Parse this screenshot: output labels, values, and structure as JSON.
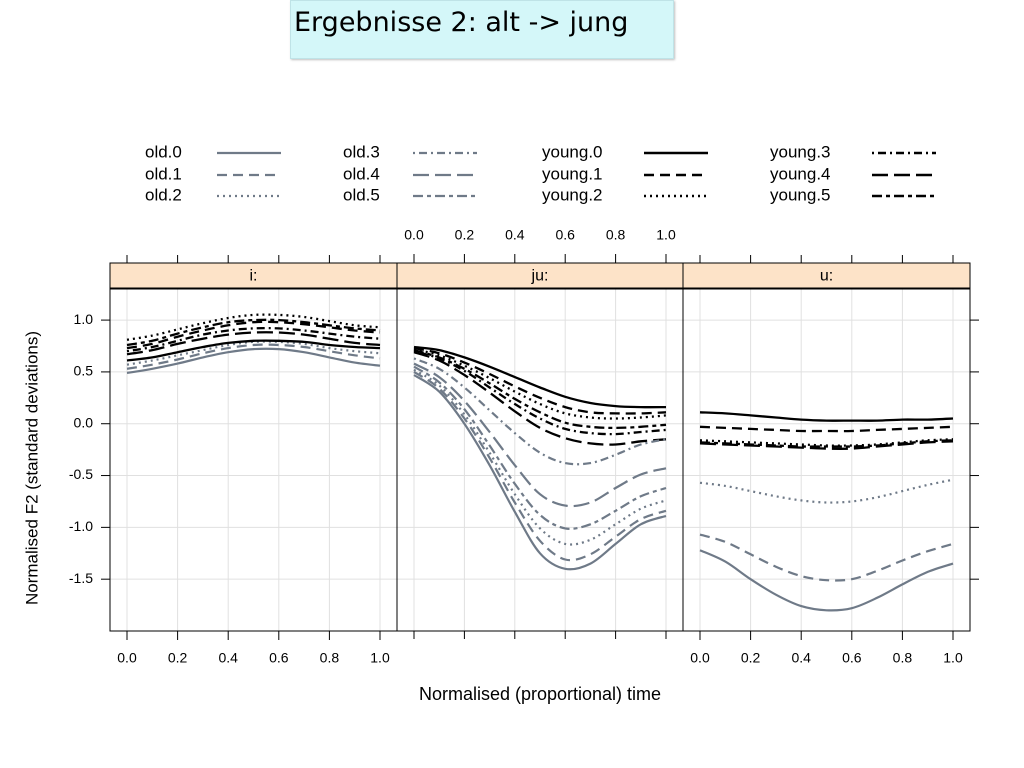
{
  "slide": {
    "title": "Ergebnisse 2: alt -> jung"
  },
  "chart_data": {
    "type": "line",
    "xlabel": "Normalised (proportional) time",
    "ylabel": "Normalised F2 (standard deviations)",
    "xlim": [
      0.0,
      1.0
    ],
    "ylim": [
      -2.0,
      1.3
    ],
    "x_ticks": [
      "0.0",
      "0.2",
      "0.4",
      "0.6",
      "0.8",
      "1.0"
    ],
    "y_ticks": [
      "1.0",
      "0.5",
      "0.0",
      "-0.5",
      "-1.0",
      "-1.5"
    ],
    "grid": true,
    "legend_position": "top",
    "colors": {
      "old": "#6f7a88",
      "young": "#000000",
      "strip": "#fde3c8",
      "panel_border": "#000000",
      "grid": "#e0e0e0"
    },
    "legend": [
      {
        "name": "old.0",
        "group": "old",
        "dash": "solid"
      },
      {
        "name": "old.1",
        "group": "old",
        "dash": "dashed"
      },
      {
        "name": "old.2",
        "group": "old",
        "dash": "dotted"
      },
      {
        "name": "old.3",
        "group": "old",
        "dash": "dotdash"
      },
      {
        "name": "old.4",
        "group": "old",
        "dash": "longdash"
      },
      {
        "name": "old.5",
        "group": "old",
        "dash": "twodash"
      },
      {
        "name": "young.0",
        "group": "young",
        "dash": "solid"
      },
      {
        "name": "young.1",
        "group": "young",
        "dash": "dashed"
      },
      {
        "name": "young.2",
        "group": "young",
        "dash": "dotted"
      },
      {
        "name": "young.3",
        "group": "young",
        "dash": "dotdash"
      },
      {
        "name": "young.4",
        "group": "young",
        "dash": "longdash"
      },
      {
        "name": "young.5",
        "group": "young",
        "dash": "twodash"
      }
    ],
    "x": [
      0.0,
      0.1,
      0.2,
      0.3,
      0.4,
      0.5,
      0.6,
      0.7,
      0.8,
      0.9,
      1.0
    ],
    "panels": [
      {
        "label": "i:",
        "series": [
          {
            "name": "old.0",
            "values": [
              0.49,
              0.53,
              0.58,
              0.64,
              0.69,
              0.72,
              0.72,
              0.69,
              0.64,
              0.59,
              0.56
            ]
          },
          {
            "name": "old.1",
            "values": [
              0.53,
              0.57,
              0.62,
              0.68,
              0.73,
              0.76,
              0.76,
              0.74,
              0.7,
              0.66,
              0.63
            ]
          },
          {
            "name": "old.2",
            "values": [
              0.57,
              0.61,
              0.66,
              0.71,
              0.76,
              0.79,
              0.79,
              0.77,
              0.73,
              0.7,
              0.68
            ]
          },
          {
            "name": "young.0",
            "values": [
              0.61,
              0.64,
              0.69,
              0.74,
              0.78,
              0.8,
              0.8,
              0.79,
              0.76,
              0.74,
              0.73
            ]
          },
          {
            "name": "young.4",
            "values": [
              0.67,
              0.71,
              0.77,
              0.82,
              0.86,
              0.88,
              0.88,
              0.86,
              0.82,
              0.78,
              0.76
            ]
          },
          {
            "name": "young.3",
            "values": [
              0.7,
              0.74,
              0.8,
              0.86,
              0.9,
              0.92,
              0.92,
              0.9,
              0.87,
              0.84,
              0.82
            ]
          },
          {
            "name": "young.1",
            "values": [
              0.73,
              0.77,
              0.84,
              0.9,
              0.95,
              0.98,
              0.98,
              0.96,
              0.93,
              0.9,
              0.88
            ]
          },
          {
            "name": "young.5",
            "values": [
              0.76,
              0.8,
              0.87,
              0.93,
              0.98,
              1.0,
              1.0,
              0.98,
              0.95,
              0.92,
              0.9
            ]
          },
          {
            "name": "young.2",
            "values": [
              0.81,
              0.85,
              0.91,
              0.97,
              1.02,
              1.05,
              1.05,
              1.03,
              0.99,
              0.95,
              0.93
            ]
          }
        ]
      },
      {
        "label": "ju:",
        "series": [
          {
            "name": "young.0",
            "values": [
              0.74,
              0.71,
              0.64,
              0.55,
              0.45,
              0.35,
              0.26,
              0.2,
              0.17,
              0.16,
              0.16
            ]
          },
          {
            "name": "young.1",
            "values": [
              0.73,
              0.68,
              0.59,
              0.48,
              0.36,
              0.25,
              0.16,
              0.11,
              0.1,
              0.1,
              0.11
            ]
          },
          {
            "name": "young.2",
            "values": [
              0.72,
              0.66,
              0.56,
              0.44,
              0.31,
              0.19,
              0.1,
              0.06,
              0.05,
              0.06,
              0.08
            ]
          },
          {
            "name": "young.5",
            "values": [
              0.71,
              0.64,
              0.53,
              0.39,
              0.24,
              0.11,
              0.01,
              -0.03,
              -0.04,
              -0.03,
              -0.01
            ]
          },
          {
            "name": "young.3",
            "values": [
              0.7,
              0.63,
              0.51,
              0.35,
              0.19,
              0.05,
              -0.05,
              -0.09,
              -0.1,
              -0.08,
              -0.06
            ]
          },
          {
            "name": "young.4",
            "values": [
              0.69,
              0.61,
              0.47,
              0.3,
              0.12,
              -0.04,
              -0.14,
              -0.19,
              -0.2,
              -0.17,
              -0.15
            ]
          },
          {
            "name": "old.3",
            "values": [
              0.63,
              0.53,
              0.35,
              0.13,
              -0.09,
              -0.28,
              -0.38,
              -0.38,
              -0.3,
              -0.2,
              -0.15
            ]
          },
          {
            "name": "old.4",
            "values": [
              0.58,
              0.45,
              0.22,
              -0.08,
              -0.4,
              -0.68,
              -0.79,
              -0.76,
              -0.62,
              -0.49,
              -0.43
            ]
          },
          {
            "name": "old.5",
            "values": [
              0.55,
              0.4,
              0.14,
              -0.21,
              -0.58,
              -0.88,
              -1.01,
              -0.97,
              -0.84,
              -0.7,
              -0.62
            ]
          },
          {
            "name": "old.2",
            "values": [
              0.52,
              0.37,
              0.09,
              -0.28,
              -0.68,
              -1.01,
              -1.16,
              -1.12,
              -0.97,
              -0.82,
              -0.74
            ]
          },
          {
            "name": "old.1",
            "values": [
              0.5,
              0.34,
              0.05,
              -0.33,
              -0.76,
              -1.13,
              -1.31,
              -1.26,
              -1.09,
              -0.92,
              -0.84
            ]
          },
          {
            "name": "old.0",
            "values": [
              0.47,
              0.31,
              0.0,
              -0.4,
              -0.85,
              -1.25,
              -1.4,
              -1.35,
              -1.16,
              -0.97,
              -0.89
            ]
          }
        ]
      },
      {
        "label": "u:",
        "series": [
          {
            "name": "young.0",
            "values": [
              0.11,
              0.1,
              0.08,
              0.06,
              0.04,
              0.03,
              0.03,
              0.03,
              0.04,
              0.04,
              0.05
            ]
          },
          {
            "name": "young.1",
            "values": [
              -0.03,
              -0.04,
              -0.05,
              -0.06,
              -0.07,
              -0.07,
              -0.07,
              -0.06,
              -0.05,
              -0.04,
              -0.03
            ]
          },
          {
            "name": "young.2",
            "values": [
              -0.16,
              -0.17,
              -0.18,
              -0.19,
              -0.2,
              -0.21,
              -0.21,
              -0.2,
              -0.18,
              -0.16,
              -0.15
            ]
          },
          {
            "name": "young.5",
            "values": [
              -0.18,
              -0.19,
              -0.2,
              -0.21,
              -0.22,
              -0.22,
              -0.22,
              -0.21,
              -0.19,
              -0.17,
              -0.16
            ]
          },
          {
            "name": "young.4",
            "values": [
              -0.19,
              -0.2,
              -0.21,
              -0.22,
              -0.23,
              -0.24,
              -0.24,
              -0.22,
              -0.2,
              -0.18,
              -0.17
            ]
          },
          {
            "name": "old.2",
            "values": [
              -0.57,
              -0.6,
              -0.65,
              -0.7,
              -0.74,
              -0.76,
              -0.75,
              -0.71,
              -0.65,
              -0.59,
              -0.54
            ]
          },
          {
            "name": "old.1",
            "values": [
              -1.07,
              -1.14,
              -1.26,
              -1.38,
              -1.47,
              -1.51,
              -1.5,
              -1.42,
              -1.32,
              -1.23,
              -1.16
            ]
          },
          {
            "name": "old.0",
            "values": [
              -1.22,
              -1.33,
              -1.5,
              -1.65,
              -1.76,
              -1.8,
              -1.78,
              -1.68,
              -1.55,
              -1.43,
              -1.35
            ]
          }
        ]
      }
    ]
  }
}
